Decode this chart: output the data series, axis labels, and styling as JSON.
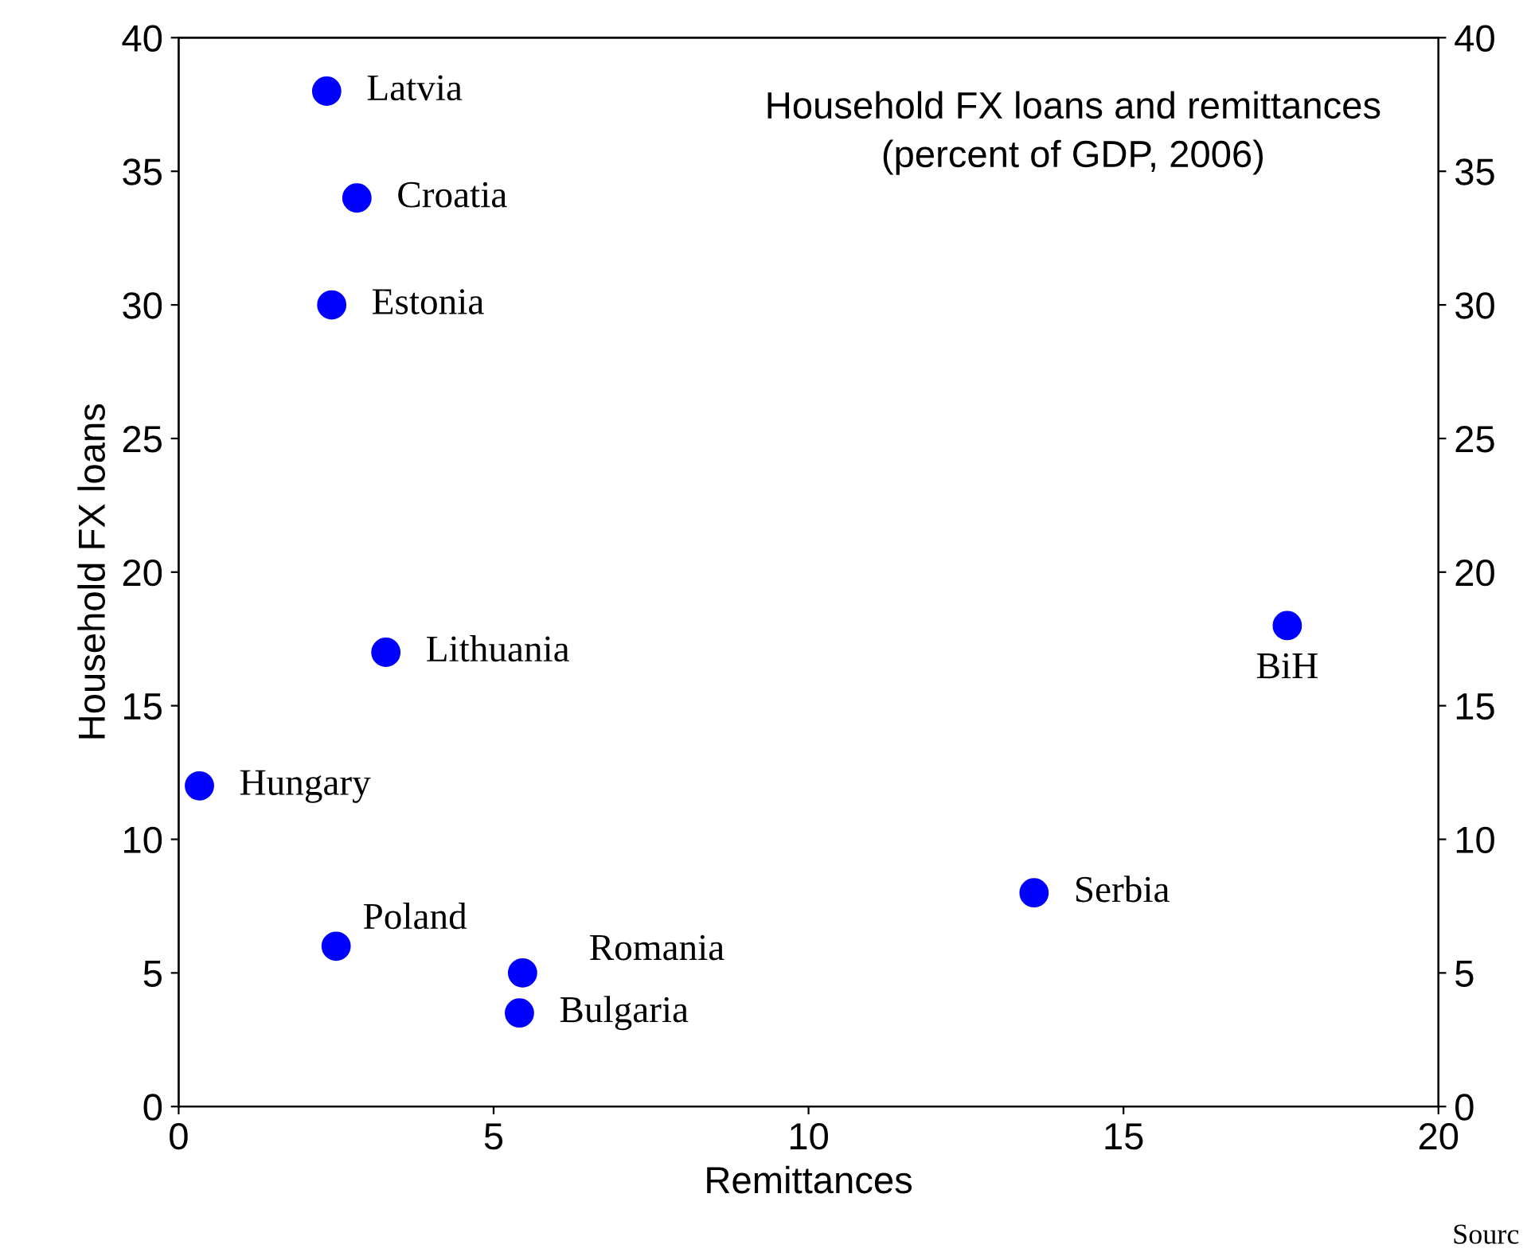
{
  "chart_data": {
    "type": "scatter",
    "title": "Household FX loans and remittances\n(percent of GDP, 2006)",
    "xlabel": "Remittances",
    "ylabel": "Household FX loans",
    "x": [
      2.35,
      2.83,
      2.43,
      3.29,
      0.33,
      2.5,
      5.46,
      5.41,
      13.58,
      17.6
    ],
    "series": [
      {
        "color": "#0000ff",
        "values": [
          38,
          34,
          30,
          17,
          12,
          6,
          5,
          3.5,
          8,
          18
        ]
      }
    ],
    "marker": "circle",
    "grid": false,
    "legend": false,
    "xlim": [
      0,
      20
    ],
    "xticks": [
      0,
      5,
      10,
      15,
      20
    ],
    "ylim": [
      0,
      40
    ],
    "yticks": [
      0,
      5,
      10,
      15,
      20,
      25,
      30,
      35,
      40
    ],
    "y2lim": [
      0,
      40
    ],
    "y2ticks": [
      0,
      5,
      10,
      15,
      20,
      25,
      30,
      35,
      40
    ],
    "annotations": [
      {
        "text": "Latvia",
        "x": 2.35,
        "y": 38
      },
      {
        "text": "Croatia",
        "x": 2.83,
        "y": 34
      },
      {
        "text": "Estonia",
        "x": 2.43,
        "y": 30
      },
      {
        "text": "Lithuania",
        "x": 3.29,
        "y": 17
      },
      {
        "text": "Hungary",
        "x": 0.33,
        "y": 12
      },
      {
        "text": "Poland",
        "x": 2.5,
        "y": 6
      },
      {
        "text": "Romania",
        "x": 5.46,
        "y": 5
      },
      {
        "text": "Bulgaria",
        "x": 5.41,
        "y": 3.5
      },
      {
        "text": "Serbia",
        "x": 13.58,
        "y": 8
      },
      {
        "text": "BiH",
        "x": 17.6,
        "y": 18
      },
      "Sourc"
    ]
  }
}
